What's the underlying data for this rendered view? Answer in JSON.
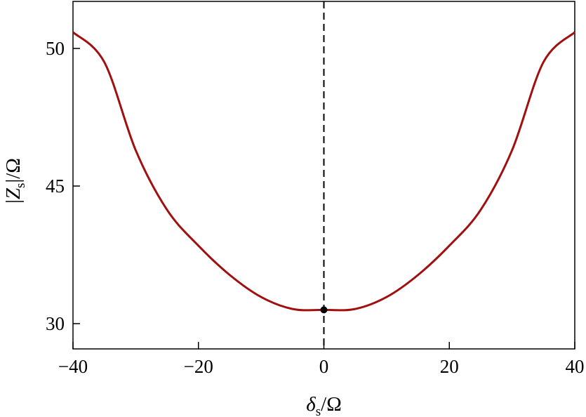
{
  "chart_data": {
    "type": "line",
    "title": "",
    "xlabel": {
      "symbol": "δ",
      "sub": "s",
      "suffix": "/Ω"
    },
    "ylabel": {
      "prefix": "|",
      "symbol": "Z",
      "sub": "s",
      "suffix": "|/Ω"
    },
    "xlim": [
      -40,
      40
    ],
    "ylim": [
      27.5,
      55.5
    ],
    "xticks": [
      -40,
      -20,
      0,
      20,
      40
    ],
    "xtick_labels": [
      "−40",
      "−20",
      "0",
      "20",
      "40"
    ],
    "yticks": [
      30,
      45,
      50
    ],
    "ytick_labels": [
      "30",
      "45",
      "50"
    ],
    "grid": false,
    "series": [
      {
        "color": "#A01010",
        "x": [
          -40,
          -35,
          -30,
          -25,
          -20,
          -15,
          -10,
          -5,
          0,
          5,
          10,
          15,
          20,
          25,
          30,
          35,
          40
        ],
        "y": [
          51.9,
          49.5,
          46.3,
          42.4,
          38.5,
          35.3,
          32.9,
          31.6,
          31.5,
          31.6,
          32.9,
          35.3,
          38.5,
          42.4,
          46.3,
          49.5,
          51.9
        ]
      }
    ],
    "vline": {
      "x": 0,
      "style": "dashed",
      "color": "#000000"
    },
    "marker": {
      "x": 0,
      "y": 31.5,
      "color": "#000000"
    }
  }
}
